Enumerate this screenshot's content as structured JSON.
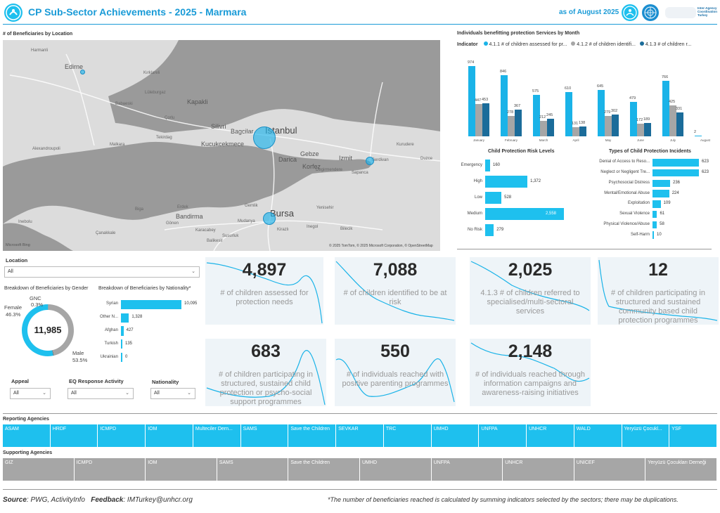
{
  "header": {
    "title": "CP Sub-Sector Achievements - 2025 - Marmara",
    "as_of": "as of August 2025",
    "logo_text": "Inter-Agency Coordination Turkey"
  },
  "map": {
    "title": "# of Beneficiaries by Location",
    "attribution": "© 2025 TomTom, © 2025 Microsoft Corporation, © OpenStreetMap",
    "bing": "Microsoft Bing",
    "labels": [
      "Edirne",
      "Harmanli",
      "Kapakli",
      "Çorlu",
      "Silivri",
      "Bagcilar",
      "Istanbul",
      "Kucukcekmece",
      "Darica",
      "Gebze",
      "Izmit",
      "Korfez",
      "Degirmendere",
      "Sapanca",
      "Serdivan",
      "Kurudere",
      "Duzce",
      "Tekirdag",
      "Malkara",
      "Bandirma",
      "Bursa",
      "Inegol",
      "Yenisehir",
      "Gemlik",
      "Mudanya",
      "Balikesir",
      "Biga",
      "Çanakkale",
      "Alexandroupoli",
      "Inebolu",
      "Bilecik",
      "Lüleburgaz",
      "Babaeski",
      "Kırklareli",
      "Karacabey",
      "Gönen",
      "Susurluk",
      "Kirazlı",
      "Erdek"
    ]
  },
  "month_chart": {
    "title": "Individuals benefitting protection Services by Month",
    "legend_label": "Indicator",
    "legend": [
      "4.1.1 # of children assessed for pr...",
      "4.1.2 # of children identifi...",
      "4.1.3 # of children r..."
    ],
    "colors": [
      "#1ab3e8",
      "#a6a6a6",
      "#1b6c9a"
    ],
    "months": [
      "January",
      "February",
      "March",
      "April",
      "May",
      "June",
      "July",
      "August"
    ],
    "series": [
      {
        "values": [
          974,
          846,
          575,
          610,
          645,
          479,
          766,
          2
        ]
      },
      {
        "values": [
          447,
          278,
          212,
          131,
          279,
          172,
          425,
          null
        ]
      },
      {
        "values": [
          453,
          367,
          245,
          138,
          302,
          189,
          331,
          null
        ]
      }
    ]
  },
  "risk_chart": {
    "title": "Child Protection Risk Levels",
    "categories": [
      "Emergency",
      "High",
      "Low",
      "Medium",
      "No Risk"
    ],
    "values": [
      160,
      1372,
      528,
      2558,
      279
    ]
  },
  "incident_chart": {
    "title": "Types of Child Protection Incidents",
    "categories": [
      "Denial of Access to Reso...",
      "Neglect or Negligent Tre...",
      "Psychosocial Distress",
      "Mental/Emotional Abuse",
      "Exploitation",
      "Sexual Violence",
      "Physical Violence/Abuse",
      "Self-Harm"
    ],
    "values": [
      623,
      623,
      236,
      224,
      109,
      61,
      58,
      10
    ]
  },
  "location_filter": {
    "label": "Location",
    "value": "All"
  },
  "gender": {
    "title": "Breakdown of Beneficiaries by Gender",
    "total": "11,985",
    "segments": [
      {
        "name": "Female",
        "pct_label": "46.3%",
        "pct": 46.3
      },
      {
        "name": "GNC",
        "pct_label": "0.3%",
        "pct": 0.3
      },
      {
        "name": "Male",
        "pct_label": "53.5%",
        "pct": 53.5
      }
    ]
  },
  "nationality_chart": {
    "title": "Breakdown of Beneficiaries by Nationality*",
    "categories": [
      "Syrian",
      "Other N...",
      "Afghan",
      "Turkish",
      "Ukrainian"
    ],
    "values": [
      10095,
      1328,
      427,
      135,
      0
    ],
    "labels": [
      "10,095",
      "1,328",
      "427",
      "135",
      "0"
    ]
  },
  "kpis": [
    {
      "value": "4,897",
      "label": "# of children assessed for protection needs"
    },
    {
      "value": "7,088",
      "label": "# of children identified to be at risk"
    },
    {
      "value": "2,025",
      "label": "4.1.3 # of children referred to specialised/multi-sectoral services"
    },
    {
      "value": "12",
      "label": "# of children participating in structured and sustained community based child protection programmes"
    },
    {
      "value": "683",
      "label": "# of children participating in structured, sustained child protection or psycho-social support programmes"
    },
    {
      "value": "550",
      "label": "# of individuals reached with positive parenting programmes"
    },
    {
      "value": "2,148",
      "label": "# of individuals reached through information campaigns and awareness-raising initiatives"
    }
  ],
  "filters": {
    "appeal": {
      "label": "Appeal",
      "value": "All"
    },
    "eq": {
      "label": "EQ Response Activity",
      "value": "All"
    },
    "nationality": {
      "label": "Nationality",
      "value": "All"
    }
  },
  "reporting": {
    "title": "Reporting Agencies",
    "items": [
      "ASAM",
      "HRDF",
      "ICMPD",
      "IOM",
      "Multeciler Dern...",
      "SAMS",
      "Save the Children",
      "SEVKAR",
      "TRC",
      "UMHD",
      "UNFPA",
      "UNHCR",
      "WALD",
      "Yeryüzü Çocukl...",
      "YSF"
    ]
  },
  "supporting": {
    "title": "Supporting Agencies",
    "items": [
      "GIZ",
      "ICMPD",
      "IOM",
      "SAMS",
      "Save the Children",
      "UMHD",
      "UNFPA",
      "UNHCR",
      "UNICEF",
      "Yeryüzü Çocukları Derneği"
    ]
  },
  "footer": {
    "source_label": "Source",
    "source": ": PWG, ActivityInfo",
    "feedback_label": "Feedback",
    "feedback": ": IMTurkey@unhcr.org",
    "note": "*The number of beneficiaries reached is calculated by summing indicators selected by the sectors; there may be duplications."
  }
}
